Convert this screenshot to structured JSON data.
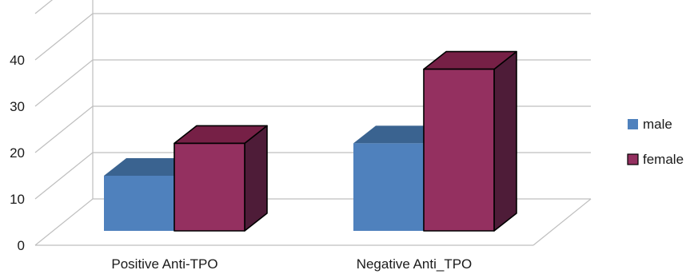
{
  "chart_data": {
    "type": "bar",
    "title": "",
    "xlabel": "",
    "ylabel": "",
    "categories": [
      "Positive Anti-TPO",
      "Negative Anti_TPO"
    ],
    "series": [
      {
        "name": "male",
        "values": [
          15,
          22
        ]
      },
      {
        "name": "female",
        "values": [
          22,
          38
        ]
      }
    ],
    "ylim": [
      0,
      50
    ],
    "yticks": [
      "0",
      "10",
      "20",
      "30",
      "40"
    ],
    "grid": true,
    "three_d": true,
    "legend_position": "right",
    "colors": {
      "male_front": "#4f81bd",
      "male_top": "#3a6390",
      "female_front": "#943060",
      "female_top": "#762046",
      "female_side": "#4e1c38",
      "grid": "#bfbfbf"
    }
  }
}
